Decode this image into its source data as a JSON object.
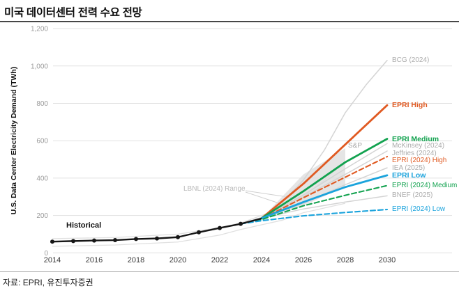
{
  "title": "미국 데이터센터 전력 수요 전망",
  "source": "자료: EPRI, 유진투자증권",
  "y_axis": {
    "label": "U.S. Data Center Electricity Demand (TWh)",
    "ticks": [
      "0",
      "200",
      "400",
      "600",
      "800",
      "1,000",
      "1,200"
    ]
  },
  "x_axis": {
    "ticks": [
      "2014",
      "2016",
      "2018",
      "2020",
      "2022",
      "2024",
      "2026",
      "2028",
      "2030"
    ]
  },
  "chart_data": {
    "type": "line",
    "title": "미국 데이터센터 전력 수요 전망",
    "ylabel": "U.S. Data Center Electricity Demand (TWh)",
    "unit": "TWh",
    "ylim": [
      0,
      1200
    ],
    "xlim": [
      2014,
      2030
    ],
    "grid": true,
    "legend_position": "right-edge-labels",
    "colors": {
      "orange": "#E05A22",
      "green": "#12A24F",
      "blue": "#1AA3DC",
      "gray": "#D4D4D4",
      "historical": "#161616",
      "band_fill": "#DCDCDC"
    },
    "historical": {
      "name": "Historical",
      "color": "#161616",
      "x": [
        2014,
        2015,
        2016,
        2017,
        2018,
        2019,
        2020,
        2021,
        2022,
        2023,
        2024
      ],
      "values": [
        60,
        63,
        66,
        68,
        74,
        77,
        84,
        110,
        133,
        155,
        184
      ]
    },
    "series": [
      {
        "name": "BCG (2024)",
        "color": "#D4D4D4",
        "line_style": "solid",
        "bold": false,
        "x": [
          2023,
          2024,
          2025,
          2026,
          2027,
          2028,
          2029,
          2030
        ],
        "values": [
          155,
          190,
          270,
          390,
          550,
          750,
          900,
          1030
        ]
      },
      {
        "name": "EPRI High",
        "color": "#E05A22",
        "line_style": "solid",
        "bold": true,
        "x": [
          2024,
          2026,
          2028,
          2030
        ],
        "values": [
          185,
          370,
          580,
          790
        ]
      },
      {
        "name": "EPRI Medium",
        "color": "#12A24F",
        "line_style": "solid",
        "bold": true,
        "x": [
          2024,
          2026,
          2028,
          2030
        ],
        "values": [
          185,
          330,
          485,
          610
        ]
      },
      {
        "name": "McKinsey (2024)",
        "color": "#D4D4D4",
        "line_style": "solid",
        "bold": false,
        "x": [
          2024,
          2026,
          2028,
          2030
        ],
        "values": [
          185,
          310,
          450,
          585
        ]
      },
      {
        "name": "Jeffries (2024)",
        "color": "#D4D4D4",
        "line_style": "solid",
        "bold": false,
        "x": [
          2024,
          2026,
          2028,
          2030
        ],
        "values": [
          185,
          300,
          420,
          545
        ]
      },
      {
        "name": "EPRI (2024) High",
        "color": "#E05A22",
        "line_style": "dashed",
        "bold": false,
        "x": [
          2023,
          2024,
          2026,
          2028,
          2030
        ],
        "values": [
          155,
          182,
          295,
          405,
          515
        ]
      },
      {
        "name": "IEA (2025)",
        "color": "#D4D4D4",
        "line_style": "solid",
        "bold": false,
        "x": [
          2024,
          2026,
          2028,
          2030
        ],
        "values": [
          185,
          265,
          365,
          455
        ]
      },
      {
        "name": "EPRI Low",
        "color": "#1AA3DC",
        "line_style": "solid",
        "bold": true,
        "x": [
          2024,
          2026,
          2028,
          2030
        ],
        "values": [
          185,
          272,
          352,
          415
        ]
      },
      {
        "name": "EPRI (2024) Medium",
        "color": "#12A24F",
        "line_style": "dashed",
        "bold": false,
        "x": [
          2023,
          2024,
          2026,
          2028,
          2030
        ],
        "values": [
          155,
          178,
          252,
          308,
          360
        ]
      },
      {
        "name": "BNEF (2025)",
        "color": "#D4D4D4",
        "line_style": "solid",
        "bold": false,
        "x": [
          2024,
          2026,
          2028,
          2030
        ],
        "values": [
          185,
          235,
          272,
          305
        ]
      },
      {
        "name": "EPRI (2024) Low",
        "color": "#1AA3DC",
        "line_style": "dashed",
        "bold": false,
        "x": [
          2023,
          2024,
          2026,
          2028,
          2030
        ],
        "values": [
          155,
          172,
          198,
          216,
          232
        ]
      }
    ],
    "ranges": [
      {
        "name": "LBNL (2024) Range",
        "render": "lines",
        "color": "#E0E0E0",
        "x": [
          2014,
          2017,
          2020,
          2022,
          2023,
          2025,
          2026,
          2027,
          2028
        ],
        "high": [
          76,
          82,
          100,
          135,
          160,
          240,
          300,
          390,
          490
        ],
        "low": [
          35,
          42,
          58,
          95,
          125,
          175,
          215,
          240,
          265
        ]
      },
      {
        "name": "S&P",
        "render": "band",
        "fill": "#DCDCDC",
        "x": [
          2024,
          2026,
          2028
        ],
        "high": [
          185,
          420,
          560
        ],
        "low": [
          185,
          252,
          355
        ]
      }
    ]
  }
}
